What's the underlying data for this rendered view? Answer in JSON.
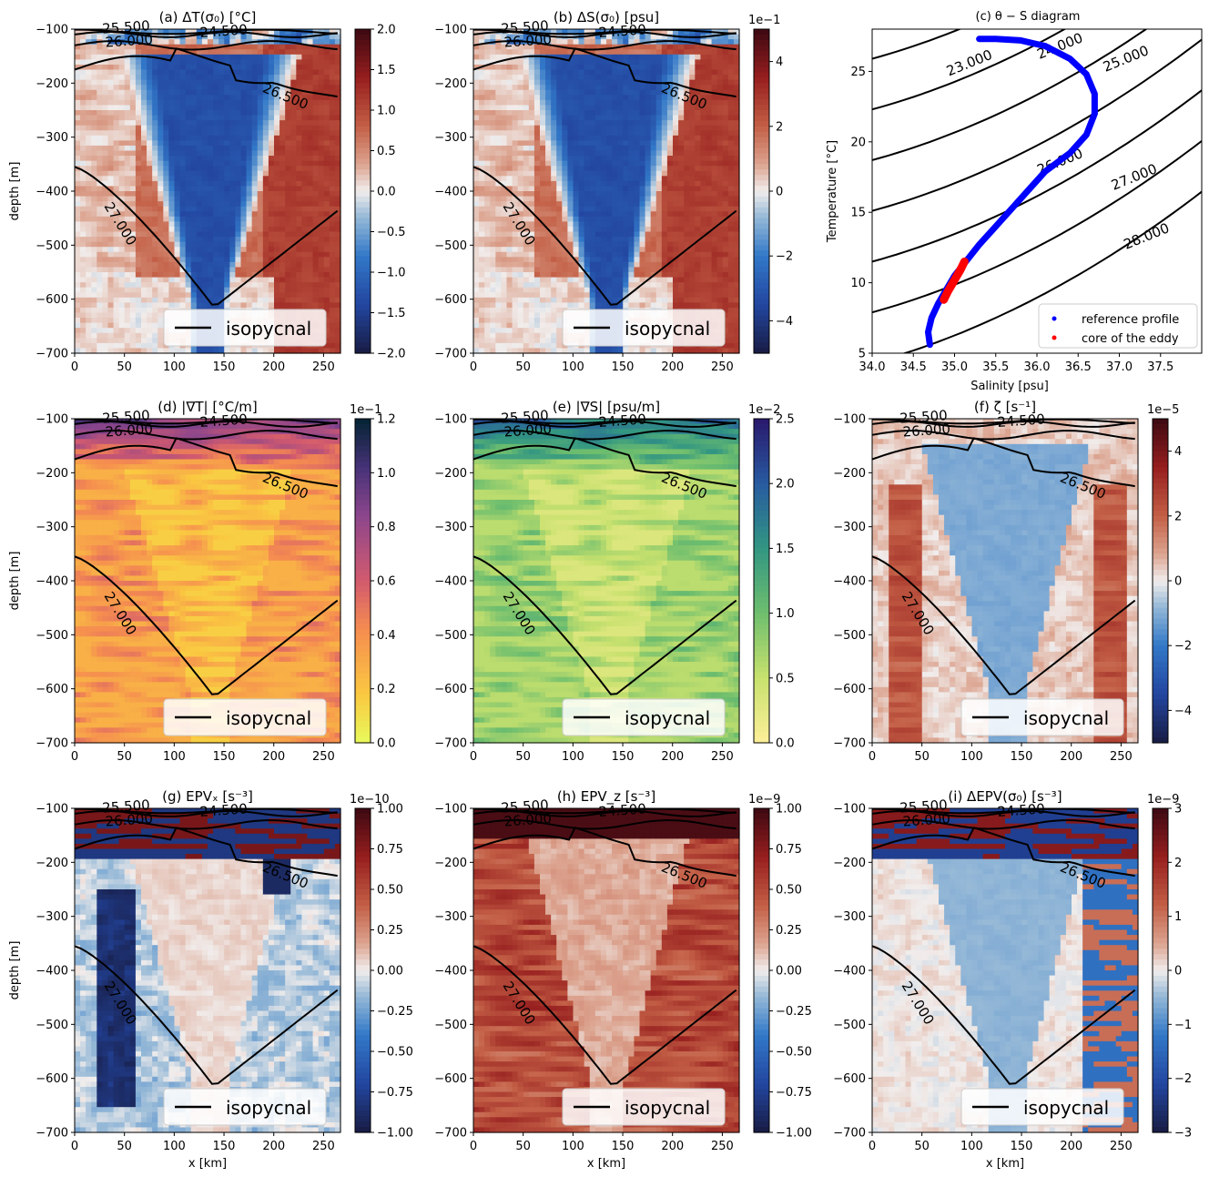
{
  "chart_data": [
    {
      "id": "a",
      "type": "heatmap",
      "title": "(a) ΔT(σ₀)  [°C]",
      "xlabel": "",
      "ylabel": "depth [m]",
      "xlim": [
        0,
        267
      ],
      "ylim": [
        -700,
        -100
      ],
      "xticks": [
        "0",
        "50",
        "100",
        "150",
        "200",
        "250"
      ],
      "yticks": [
        "−100",
        "−200",
        "−300",
        "−400",
        "−500",
        "−600",
        "−700"
      ],
      "colormap": "balance",
      "field": "anomaly",
      "inside": -1.1,
      "outside": 0.9,
      "colorbar": {
        "ticks": [
          "2.0",
          "1.5",
          "1.0",
          "0.5",
          "0.0",
          "−0.5",
          "−1.0",
          "−1.5",
          "−2.0"
        ],
        "exponent": ""
      },
      "contours": [
        "25.500",
        "24.500",
        "26.000",
        "26.500",
        "27.000"
      ],
      "legend": "isopycnal"
    },
    {
      "id": "b",
      "type": "heatmap",
      "title": "(b) ΔS(σ₀)  [psu]",
      "xlabel": "",
      "ylabel": "",
      "xlim": [
        0,
        267
      ],
      "ylim": [
        -700,
        -100
      ],
      "xticks": [
        "0",
        "50",
        "100",
        "150",
        "200",
        "250"
      ],
      "yticks": [
        "−100",
        "−200",
        "−300",
        "−400",
        "−500",
        "−600",
        "−700"
      ],
      "colormap": "balance",
      "field": "anomaly",
      "inside": -1.1,
      "outside": 0.9,
      "colorbar": {
        "ticks": [
          "4",
          "2",
          "0",
          "−2",
          "−4"
        ],
        "exponent": "1e−1"
      },
      "contours": [
        "25.500",
        "24.500",
        "26.000",
        "26.500",
        "27.000"
      ],
      "legend": "isopycnal"
    },
    {
      "id": "c",
      "type": "scatter",
      "title": "(c) θ − S diagram",
      "xlabel": "Salinity [psu]",
      "ylabel": "Temperature [°C]",
      "xlim": [
        34.0,
        38.0
      ],
      "ylim": [
        5,
        28
      ],
      "xticks": [
        "34.0",
        "34.5",
        "35.0",
        "35.5",
        "36.0",
        "36.5",
        "37.0",
        "37.5"
      ],
      "yticks": [
        "5",
        "10",
        "15",
        "20",
        "25"
      ],
      "density_contours": [
        "23.000",
        "24.000",
        "25.000",
        "26.000",
        "27.000",
        "28.000"
      ],
      "series": [
        {
          "name": "reference profile",
          "color": "#0000ff",
          "points": [
            [
              35.3,
              27.3
            ],
            [
              35.5,
              27.3
            ],
            [
              35.8,
              27.2
            ],
            [
              36.1,
              26.8
            ],
            [
              36.4,
              25.9
            ],
            [
              36.6,
              24.8
            ],
            [
              36.7,
              23.4
            ],
            [
              36.7,
              22.0
            ],
            [
              36.6,
              20.5
            ],
            [
              36.4,
              19.2
            ],
            [
              36.1,
              17.9
            ],
            [
              35.9,
              16.6
            ],
            [
              35.7,
              15.3
            ],
            [
              35.5,
              14.0
            ],
            [
              35.3,
              12.7
            ],
            [
              35.15,
              11.6
            ],
            [
              35.0,
              10.5
            ],
            [
              34.9,
              9.5
            ],
            [
              34.8,
              8.5
            ],
            [
              34.72,
              7.5
            ],
            [
              34.68,
              6.5
            ],
            [
              34.7,
              5.6
            ]
          ]
        },
        {
          "name": "core of the eddy",
          "color": "#ff0000",
          "points": [
            [
              34.87,
              8.8
            ],
            [
              34.92,
              9.4
            ],
            [
              34.97,
              9.9
            ],
            [
              35.02,
              10.4
            ],
            [
              35.07,
              10.9
            ],
            [
              35.12,
              11.5
            ]
          ]
        }
      ]
    },
    {
      "id": "d",
      "type": "heatmap",
      "title": "(d) |∇T|  [°C/m]",
      "xlabel": "",
      "ylabel": "depth [m]",
      "xlim": [
        0,
        267
      ],
      "ylim": [
        -700,
        -100
      ],
      "xticks": [
        "0",
        "50",
        "100",
        "150",
        "200",
        "250"
      ],
      "yticks": [
        "−100",
        "−200",
        "−300",
        "−400",
        "−500",
        "−600",
        "−700"
      ],
      "colormap": "thermal-r",
      "field": "gradient",
      "colorbar": {
        "ticks": [
          "1.2",
          "1.0",
          "0.8",
          "0.6",
          "0.4",
          "0.2",
          "0.0"
        ],
        "exponent": "1e−1"
      },
      "contours": [
        "25.500",
        "24.500",
        "26.000",
        "26.500",
        "27.000"
      ],
      "legend": "isopycnal"
    },
    {
      "id": "e",
      "type": "heatmap",
      "title": "(e) |∇S|  [psu/m]",
      "xlabel": "",
      "ylabel": "",
      "xlim": [
        0,
        267
      ],
      "ylim": [
        -700,
        -100
      ],
      "xticks": [
        "0",
        "50",
        "100",
        "150",
        "200",
        "250"
      ],
      "yticks": [
        "−100",
        "−200",
        "−300",
        "−400",
        "−500",
        "−600",
        "−700"
      ],
      "colormap": "haline-r",
      "field": "gradient",
      "colorbar": {
        "ticks": [
          "2.5",
          "2.0",
          "1.5",
          "1.0",
          "0.5",
          "0.0"
        ],
        "exponent": "1e−2"
      },
      "contours": [
        "25.500",
        "24.500",
        "26.000",
        "26.500",
        "27.000"
      ],
      "legend": "isopycnal"
    },
    {
      "id": "f",
      "type": "heatmap",
      "title": "(f) ζ  [s⁻¹]",
      "xlabel": "",
      "ylabel": "",
      "xlim": [
        0,
        267
      ],
      "ylim": [
        -700,
        -100
      ],
      "xticks": [
        "0",
        "50",
        "100",
        "150",
        "200",
        "250"
      ],
      "yticks": [
        "−100",
        "−200",
        "−300",
        "−400",
        "−500",
        "−600",
        "−700"
      ],
      "colormap": "balance",
      "field": "vorticity",
      "colorbar": {
        "ticks": [
          "4",
          "2",
          "0",
          "−2",
          "−4"
        ],
        "exponent": "1e−5"
      },
      "contours": [
        "25.500",
        "24.500",
        "26.000",
        "26.500",
        "27.000"
      ],
      "legend": "isopycnal"
    },
    {
      "id": "g",
      "type": "heatmap",
      "title": "(g) EPVₓ  [s⁻³]",
      "xlabel": "x [km]",
      "ylabel": "depth [m]",
      "xlim": [
        0,
        267
      ],
      "ylim": [
        -700,
        -100
      ],
      "xticks": [
        "0",
        "50",
        "100",
        "150",
        "200",
        "250"
      ],
      "yticks": [
        "−100",
        "−200",
        "−300",
        "−400",
        "−500",
        "−600",
        "−700"
      ],
      "colormap": "balance",
      "field": "epvx",
      "colorbar": {
        "ticks": [
          "1.00",
          "0.75",
          "0.50",
          "0.25",
          "0.00",
          "−0.25",
          "−0.50",
          "−0.75",
          "−1.00"
        ],
        "exponent": "1e−10"
      },
      "contours": [
        "25.500",
        "24.500",
        "26.000",
        "26.500",
        "27.000"
      ],
      "legend": "isopycnal"
    },
    {
      "id": "h",
      "type": "heatmap",
      "title": "(h) EPV_z  [s⁻³]",
      "xlabel": "x [km]",
      "ylabel": "",
      "xlim": [
        0,
        267
      ],
      "ylim": [
        -700,
        -100
      ],
      "xticks": [
        "0",
        "50",
        "100",
        "150",
        "200",
        "250"
      ],
      "yticks": [
        "−100",
        "−200",
        "−300",
        "−400",
        "−500",
        "−600",
        "−700"
      ],
      "colormap": "balance",
      "field": "epvz",
      "colorbar": {
        "ticks": [
          "1.00",
          "0.75",
          "0.50",
          "0.25",
          "0.00",
          "−0.25",
          "−0.50",
          "−0.75",
          "−1.00"
        ],
        "exponent": "1e−9"
      },
      "contours": [
        "25.500",
        "24.500",
        "26.000",
        "26.500",
        "27.000"
      ],
      "legend": "isopycnal"
    },
    {
      "id": "i",
      "type": "heatmap",
      "title": "(i) ΔEPV(σ₀)  [s⁻³]",
      "xlabel": "x [km]",
      "ylabel": "",
      "xlim": [
        0,
        267
      ],
      "ylim": [
        -700,
        -100
      ],
      "xticks": [
        "0",
        "50",
        "100",
        "150",
        "200",
        "250"
      ],
      "yticks": [
        "−100",
        "−200",
        "−300",
        "−400",
        "−500",
        "−600",
        "−700"
      ],
      "colormap": "balance",
      "field": "depv",
      "colorbar": {
        "ticks": [
          "3",
          "2",
          "1",
          "0",
          "−1",
          "−2",
          "−3"
        ],
        "exponent": "1e−9"
      },
      "contours": [
        "25.500",
        "24.500",
        "26.000",
        "26.500",
        "27.000"
      ],
      "legend": "isopycnal"
    }
  ]
}
